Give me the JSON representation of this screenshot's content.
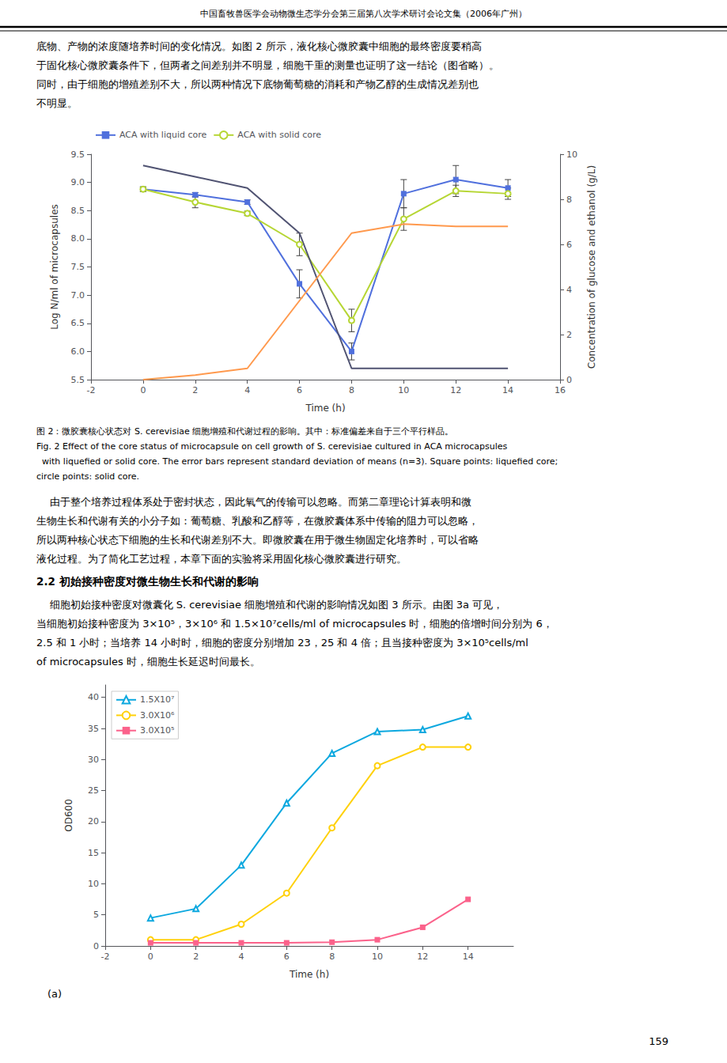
{
  "chart_data": [
    {
      "type": "line",
      "header": "中国畜牧兽医学会动物微生态学分会第三届第八次学术研讨会论文集（2006年广州）",
      "text": [
        "底物、产物的浓度随培养时间的变化情况。如图 2 所示，液化核心微胶囊中细胞的最终密度要稍高",
        "于固化核心微胶囊条件下，但两者之间差别并不明显，细胞干重的测量也证明了这一结论（图省略）。",
        "同时，由于细胞的增殖差别不大，所以两种情况下底物葡萄糖的消耗和产物乙醇的生成情况差别也",
        "不明显。"
      ],
      "xlabel": "Time (h)",
      "ylabel": "Log N/ml of microcapsules",
      "y2label": "Concentration of glucose and ethanol (g/L)",
      "x": [
        0,
        2,
        4,
        6,
        8,
        10,
        12,
        14
      ],
      "xlim": [
        -2,
        16
      ],
      "xticks": [
        -2,
        0,
        2,
        4,
        6,
        8,
        10,
        12,
        14,
        16
      ],
      "ylim": [
        5.5,
        9.5
      ],
      "yticks": [
        5.5,
        {
          "value": 6.0,
          "label": "6.0"
        },
        6.5,
        {
          "value": 7.0,
          "label": "7.0"
        },
        7.5,
        {
          "value": 8.0,
          "label": "8.0"
        },
        8.5,
        {
          "value": 9.0,
          "label": "9.0"
        },
        9.5
      ],
      "y2lim": [
        0,
        10
      ],
      "y2ticks": [
        0,
        2,
        4,
        6,
        8,
        10
      ],
      "grid": false,
      "legend": "upper left",
      "series": [
        {
          "name": "ACA with liquid core",
          "values": [
            8.88,
            8.78,
            8.65,
            7.2,
            6.0,
            8.8,
            9.05,
            8.9
          ],
          "errors": [
            0.04,
            0.04,
            0.04,
            0.25,
            0.15,
            0.25,
            0.25,
            0.15
          ],
          "marker": "square"
        },
        {
          "name": "ACA with solid core",
          "values": [
            8.88,
            8.65,
            8.45,
            7.9,
            6.55,
            8.35,
            8.85,
            8.8
          ],
          "errors": [
            0.04,
            0.1,
            0.04,
            0.2,
            0.2,
            0.2,
            0.1,
            0.1
          ],
          "marker": "circle_open"
        },
        {
          "values": [
            9.5,
            9.0,
            8.5,
            6.5,
            0.5,
            0.5,
            0.5,
            0.5
          ],
          "axis": "y2",
          "marker": "none"
        },
        {
          "values": [
            0.0,
            0.2,
            0.5,
            3.5,
            6.5,
            6.9,
            6.8,
            6.8
          ],
          "axis": "y2",
          "marker": "none"
        }
      ],
      "caption": [
        "图 2：微胶囊核心状态对 S. cerevisiae 细胞增殖和代谢过程的影响。其中：标准偏差来自于三个平行样品。",
        "Fig. 2 Effect of the core status of microcapsule on cell growth of S. cerevisiae cultured in ACA microcapsules",
        "  with liquefied or solid core. The error bars represent standard deviation of means (n=3). Square points: liquefied core;",
        "circle points: solid core."
      ]
    },
    {
      "type": "line",
      "text": [
        "    由于整个培养过程体系处于密封状态，因此氧气的传输可以忽略。而第二章理论计算表明和微",
        "生物生长和代谢有关的小分子如：葡萄糖、乳酸和乙醇等，在微胶囊体系中传输的阻力可以忽略，",
        "所以两种核心状态下细胞的生长和代谢差别不大。即微胶囊在用于微生物固定化培养时，可以省略",
        "液化过程。为了简化工艺过程，本章下面的实验将采用固化核心微胶囊进行研究。"
      ],
      "section_title": "2.2 初始接种密度对微生物生长和代谢的影响",
      "section_text": [
        "    细胞初始接种密度对微囊化 S. cerevisiae 细胞增殖和代谢的影响情况如图 3 所示。由图 3a 可见，",
        "当细胞初始接种密度为 3×10⁵，3×10⁶ 和 1.5×10⁷cells/ml of microcapsules 时，细胞的倍增时间分别为 6，",
        "2.5 和 1 小时；当培养 14 小时时，细胞的密度分别增加 23，25 和 4 倍；且当接种密度为 3×10⁵cells/ml",
        "of microcapsules 时，细胞生长延迟时间最长。"
      ],
      "xlabel": "Time (h)",
      "ylabel": "OD600",
      "x": [
        0,
        2,
        4,
        6,
        8,
        10,
        12,
        14
      ],
      "xlim": [
        -2,
        16
      ],
      "xticks": [
        -2,
        0,
        2,
        4,
        6,
        8,
        10,
        12,
        14
      ],
      "ylim": [
        0,
        42
      ],
      "yticks": [
        0,
        5,
        10,
        15,
        20,
        25,
        30,
        35,
        40
      ],
      "grid": false,
      "legend": "upper left",
      "series": [
        {
          "name": "1.5X10⁷",
          "values": [
            4.5,
            6.0,
            13.0,
            23.0,
            31.0,
            34.5,
            34.8,
            37.0
          ],
          "marker": "triangle_open"
        },
        {
          "name": "3.0X10⁶",
          "values": [
            1.0,
            1.0,
            3.5,
            8.5,
            19.0,
            29.0,
            32.0,
            32.0
          ],
          "marker": "circle_open"
        },
        {
          "name": "3.0X10⁵",
          "values": [
            0.5,
            0.5,
            0.5,
            0.5,
            0.6,
            1.0,
            3.0,
            7.5
          ],
          "marker": "square"
        }
      ],
      "panel_label": "(a)",
      "page_number": "159"
    }
  ]
}
